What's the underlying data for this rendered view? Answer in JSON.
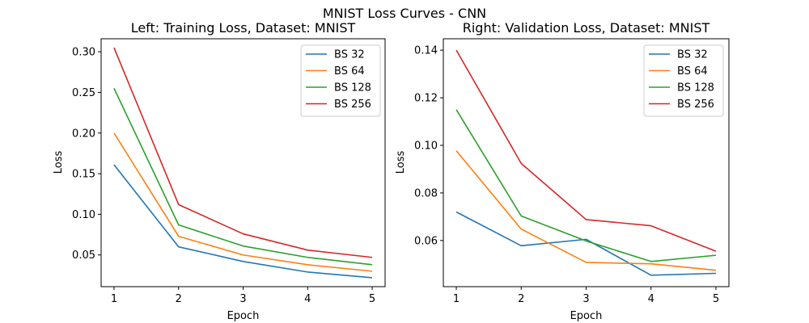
{
  "figure": {
    "suptitle": "MNIST Loss Curves - CNN"
  },
  "chart_data": [
    {
      "type": "line",
      "title": "Left: Training Loss, Dataset: MNIST",
      "xlabel": "Epoch",
      "ylabel": "Loss",
      "x": [
        1,
        2,
        3,
        4,
        5
      ],
      "xlim": [
        0.8,
        5.2
      ],
      "ylim": [
        0.011,
        0.316
      ],
      "xticks": [
        1,
        2,
        3,
        4,
        5
      ],
      "yticks": [
        0.05,
        0.1,
        0.15,
        0.2,
        0.25,
        0.3
      ],
      "ytick_labels": [
        "0.05",
        "0.10",
        "0.15",
        "0.20",
        "0.25",
        "0.30"
      ],
      "legend": "top-right",
      "grid": false,
      "series": [
        {
          "name": "BS 32",
          "color": "#1f77b4",
          "values": [
            0.161,
            0.06,
            0.042,
            0.029,
            0.022
          ]
        },
        {
          "name": "BS 64",
          "color": "#ff7f0e",
          "values": [
            0.2,
            0.073,
            0.05,
            0.038,
            0.03
          ]
        },
        {
          "name": "BS 128",
          "color": "#2ca02c",
          "values": [
            0.255,
            0.087,
            0.061,
            0.047,
            0.038
          ]
        },
        {
          "name": "BS 256",
          "color": "#d62728",
          "values": [
            0.305,
            0.112,
            0.076,
            0.056,
            0.047
          ]
        }
      ]
    },
    {
      "type": "line",
      "title": "Right: Validation Loss, Dataset: MNIST",
      "xlabel": "Epoch",
      "ylabel": "Loss",
      "x": [
        1,
        2,
        3,
        4,
        5
      ],
      "xlim": [
        0.8,
        5.2
      ],
      "ylim": [
        0.0406,
        0.1448
      ],
      "xticks": [
        1,
        2,
        3,
        4,
        5
      ],
      "yticks": [
        0.06,
        0.08,
        0.1,
        0.12,
        0.14
      ],
      "ytick_labels": [
        "0.06",
        "0.08",
        "0.10",
        "0.12",
        "0.14"
      ],
      "legend": "top-right",
      "grid": false,
      "series": [
        {
          "name": "BS 32",
          "color": "#1f77b4",
          "values": [
            0.072,
            0.0578,
            0.0605,
            0.0454,
            0.0462
          ]
        },
        {
          "name": "BS 64",
          "color": "#ff7f0e",
          "values": [
            0.0977,
            0.0648,
            0.0508,
            0.0502,
            0.0475
          ]
        },
        {
          "name": "BS 128",
          "color": "#2ca02c",
          "values": [
            0.115,
            0.0703,
            0.0598,
            0.0512,
            0.0538
          ]
        },
        {
          "name": "BS 256",
          "color": "#d62728",
          "values": [
            0.14,
            0.0924,
            0.0688,
            0.0662,
            0.0555
          ]
        }
      ]
    }
  ]
}
